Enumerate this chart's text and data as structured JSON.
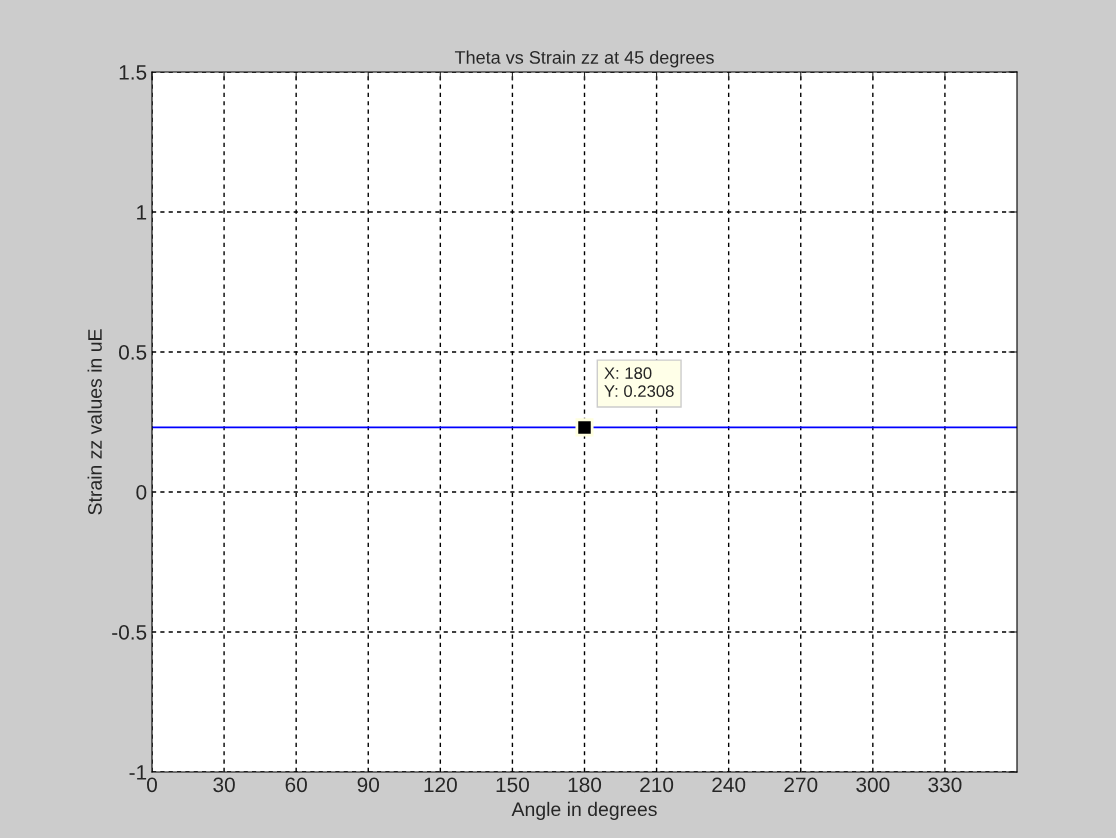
{
  "chart_data": {
    "type": "line",
    "title": "Theta vs Strain zz at 45 degrees",
    "xlabel": "Angle in degrees",
    "ylabel": "Strain zz values in uE",
    "x": [
      0,
      360
    ],
    "series": [
      {
        "color": "#0000ff",
        "values": [
          0.2308,
          0.2308
        ]
      }
    ],
    "xlim": [
      0,
      360
    ],
    "xticks": [
      0,
      30,
      60,
      90,
      120,
      150,
      180,
      210,
      240,
      270,
      300,
      330
    ],
    "ylim": [
      -1,
      1.5
    ],
    "yticks": [
      -1,
      -0.5,
      0,
      0.5,
      1,
      1.5
    ],
    "grid": true,
    "marker": "none",
    "line_style": "solid",
    "legend": false,
    "annotations": [
      {
        "text": "X: 180\nY: 0.2308",
        "x": 180,
        "y": 0.2308
      }
    ]
  }
}
